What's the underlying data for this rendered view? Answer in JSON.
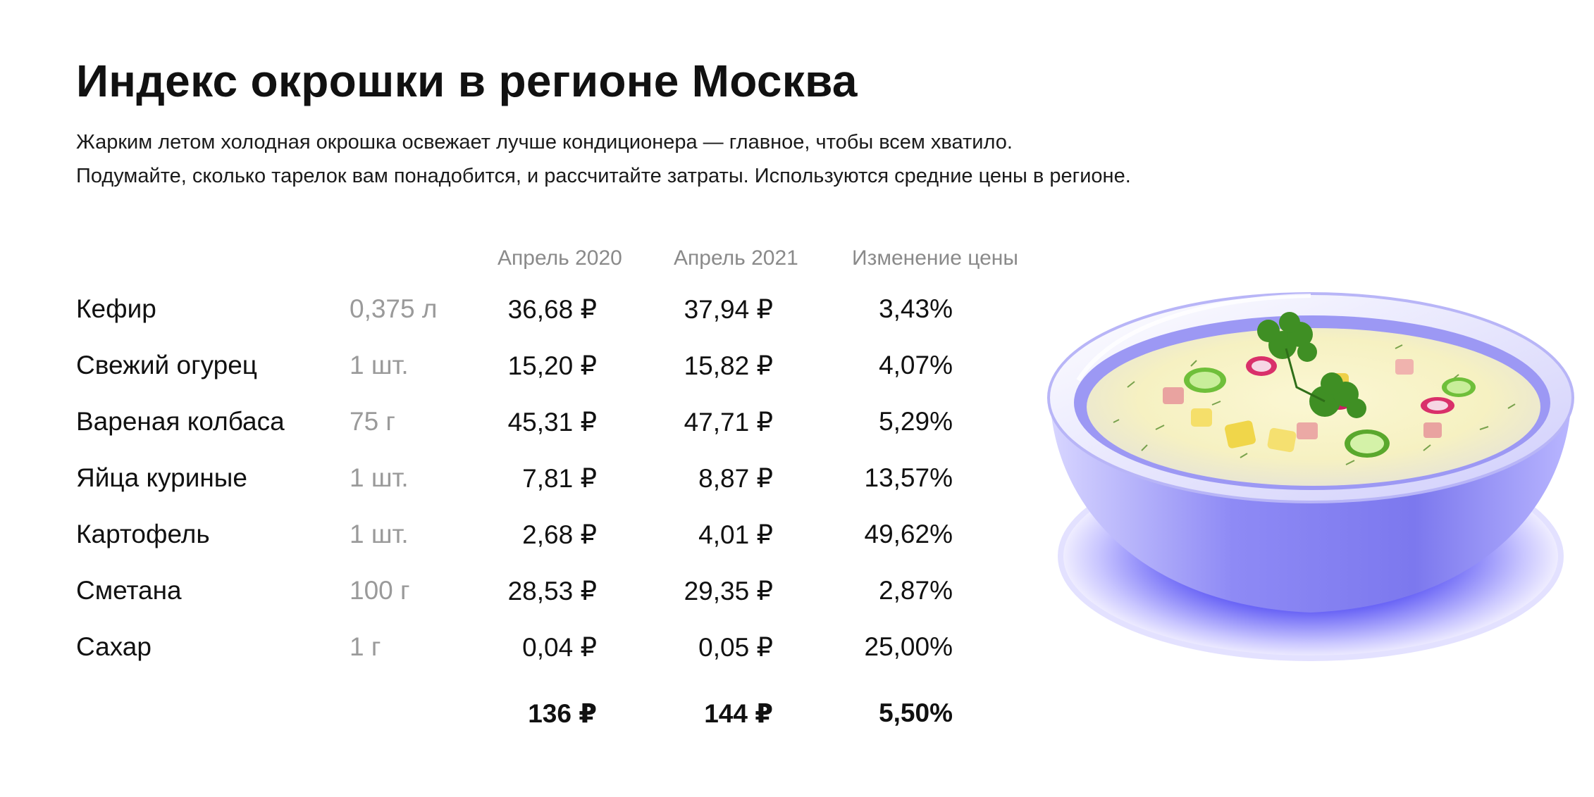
{
  "header": {
    "title": "Индекс окрошки в регионе Москва",
    "description": [
      "Жарким летом холодная окрошка освежает лучше кондиционера — главное, чтобы всем хватило.",
      "Подумайте, сколько тарелок вам понадобится, и рассчитайте затраты. Используются средние цены в регионе."
    ]
  },
  "table": {
    "columns": [
      "Апрель 2020",
      "Апрель 2021",
      "Изменение цены"
    ],
    "rows": [
      {
        "name": "Кефир",
        "unit": "0,375 л",
        "p2020": "36,68 ₽",
        "p2021": "37,94 ₽",
        "change": "3,43%"
      },
      {
        "name": "Свежий огурец",
        "unit": "1 шт.",
        "p2020": "15,20 ₽",
        "p2021": "15,82 ₽",
        "change": "4,07%"
      },
      {
        "name": "Вареная колбаса",
        "unit": "75 г",
        "p2020": "45,31 ₽",
        "p2021": "47,71 ₽",
        "change": "5,29%"
      },
      {
        "name": "Яйца куриные",
        "unit": "1 шт.",
        "p2020": "7,81 ₽",
        "p2021": "8,87 ₽",
        "change": "13,57%"
      },
      {
        "name": "Картофель",
        "unit": "1 шт.",
        "p2020": "2,68 ₽",
        "p2021": "4,01 ₽",
        "change": "49,62%"
      },
      {
        "name": "Сметана",
        "unit": "100 г",
        "p2020": "28,53 ₽",
        "p2021": "29,35 ₽",
        "change": "2,87%"
      },
      {
        "name": "Сахар",
        "unit": "1 г",
        "p2020": "0,04 ₽",
        "p2021": "0,05 ₽",
        "change": "25,00%"
      }
    ],
    "total": {
      "p2020": "136 ₽",
      "p2021": "144 ₽",
      "change": "5,50%"
    }
  },
  "illustration": {
    "icon": "okroshka-bowl-icon",
    "colors": {
      "bowl": "#7f7cf0",
      "plate": "#5b57f5",
      "soup": "#f7f3c8",
      "greens": "#4aa02c",
      "radish": "#d9306a"
    }
  }
}
